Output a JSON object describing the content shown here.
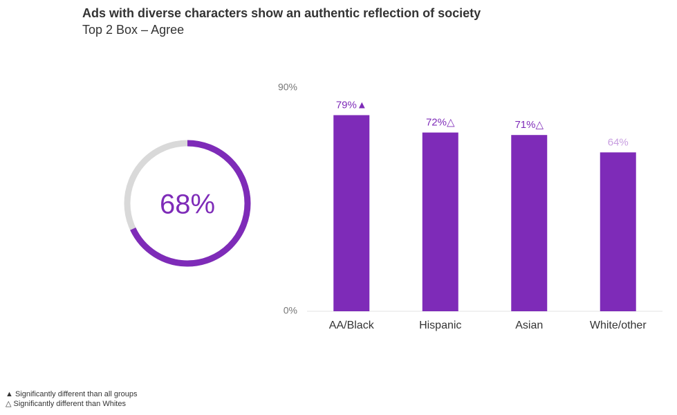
{
  "title": "Ads with diverse characters show an authentic reflection of society",
  "subtitle": "Top 2 Box – Agree",
  "notes": [
    "▲ Significantly different than all groups",
    "△ Significantly different than Whites"
  ],
  "chart_data": [
    {
      "type": "donut",
      "values": [
        68
      ],
      "value_labels": [
        "68%"
      ],
      "range": [
        0,
        100
      ],
      "color": "#7e2bb8",
      "track_color": "#d9d9d9"
    },
    {
      "type": "bar",
      "categories": [
        "AA/Black",
        "Hispanic",
        "Asian",
        "White/other"
      ],
      "values": [
        79,
        72,
        71,
        64
      ],
      "value_labels": [
        "79%▲",
        "72%△",
        "71%△",
        "64%"
      ],
      "label_colors": [
        "#7e2bb8",
        "#7e2bb8",
        "#7e2bb8",
        "#c89ee0"
      ],
      "color": "#7e2bb8",
      "ylim": [
        0,
        90
      ],
      "yticks": [
        {
          "value": 0,
          "label": "0%"
        },
        {
          "value": 90,
          "label": "90%"
        }
      ]
    }
  ]
}
